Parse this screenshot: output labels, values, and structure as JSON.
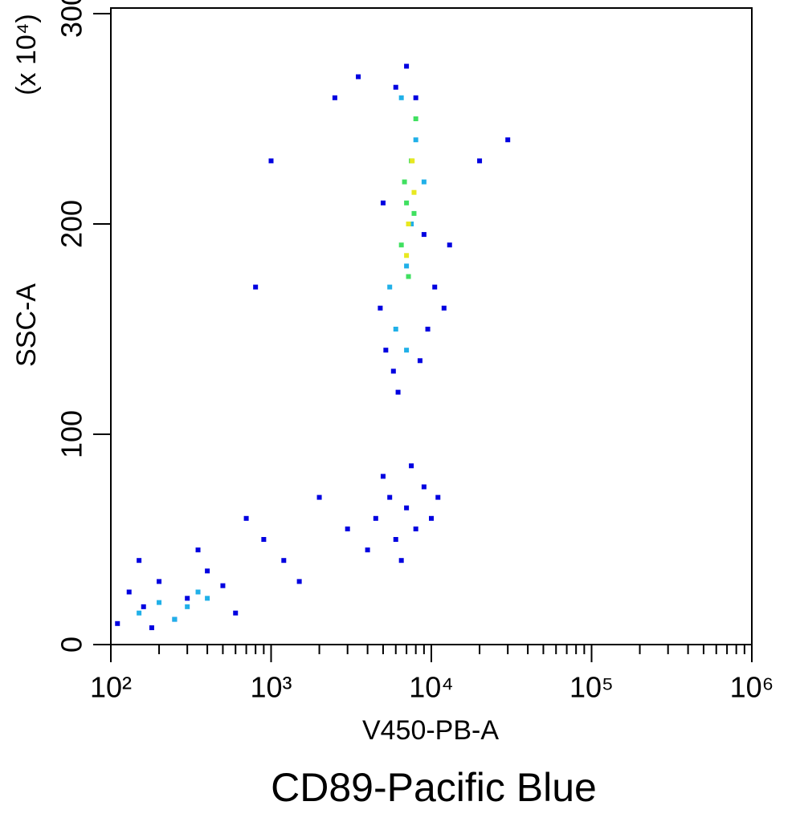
{
  "chart_data": {
    "type": "scatter",
    "title": "CD89-Pacific Blue",
    "x_label": "V450-PB-A",
    "y_label": "SSC-A",
    "y_multiplier": "(x 10⁴)",
    "xscale": "log",
    "xlim": [
      100,
      1000000
    ],
    "ylim": [
      0,
      300
    ],
    "xticks": [
      {
        "value": 100,
        "label": "10²"
      },
      {
        "value": 1000,
        "label": "10³"
      },
      {
        "value": 10000,
        "label": "10⁴"
      },
      {
        "value": 100000,
        "label": "10⁵"
      },
      {
        "value": 1000000,
        "label": "10⁶"
      }
    ],
    "xminorticks": [
      200,
      300,
      400,
      500,
      600,
      700,
      800,
      900,
      2000,
      3000,
      4000,
      5000,
      6000,
      7000,
      8000,
      9000,
      20000,
      30000,
      40000,
      50000,
      60000,
      70000,
      80000,
      90000,
      200000,
      300000,
      400000,
      500000,
      600000,
      700000,
      800000,
      900000
    ],
    "yticks": [
      0,
      100,
      200,
      300
    ],
    "series": [
      {
        "color": "#0000e0",
        "x": [
          110,
          130,
          160,
          200,
          250,
          300,
          400,
          500,
          600,
          150,
          180,
          350,
          700,
          900,
          1200,
          1500,
          2000,
          3000,
          4000,
          4500,
          5000,
          5500,
          6000,
          6500,
          7000,
          7500,
          8000,
          9000,
          10000,
          11000,
          5200,
          5800,
          9500,
          4800,
          6200,
          8500,
          10500,
          12000,
          13000,
          20000,
          30000,
          2500,
          1000,
          800,
          3500,
          6000,
          7000,
          8000,
          5000,
          9000
        ],
        "values": [
          10,
          25,
          18,
          30,
          12,
          22,
          35,
          28,
          15,
          40,
          8,
          45,
          60,
          50,
          40,
          30,
          70,
          55,
          45,
          60,
          80,
          70,
          50,
          40,
          65,
          85,
          55,
          75,
          60,
          70,
          140,
          130,
          150,
          160,
          120,
          135,
          170,
          160,
          190,
          230,
          240,
          260,
          230,
          170,
          270,
          265,
          275,
          260,
          210,
          195
        ]
      },
      {
        "color": "#20b0e8",
        "x": [
          150,
          200,
          250,
          300,
          350,
          400,
          6000,
          7000,
          8000,
          6500,
          7500,
          5500,
          9000,
          7000
        ],
        "values": [
          15,
          20,
          12,
          18,
          25,
          22,
          150,
          180,
          240,
          260,
          200,
          170,
          220,
          140
        ]
      },
      {
        "color": "#40e060",
        "x": [
          6500,
          7000,
          7500,
          8000,
          7200,
          7800,
          6800
        ],
        "values": [
          190,
          210,
          230,
          250,
          175,
          205,
          220
        ]
      },
      {
        "color": "#e8e820",
        "x": [
          7200,
          7600,
          7000,
          7800
        ],
        "values": [
          200,
          230,
          185,
          215
        ]
      }
    ]
  }
}
